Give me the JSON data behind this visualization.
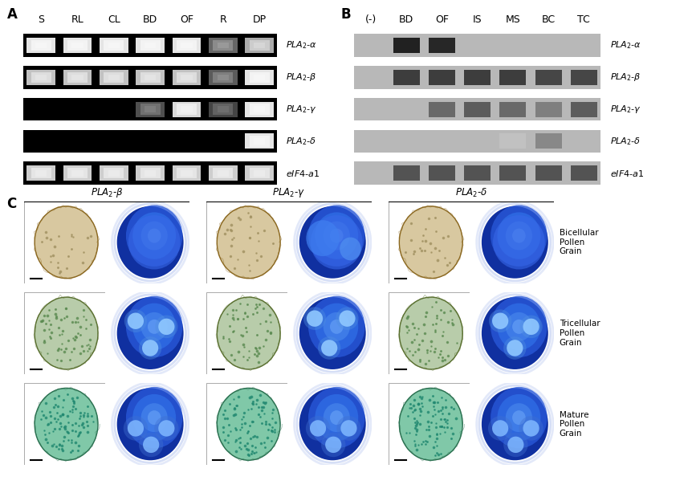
{
  "panel_A_label": "A",
  "panel_B_label": "B",
  "panel_C_label": "C",
  "panel_A_col_labels": [
    "S",
    "RL",
    "CL",
    "BD",
    "OF",
    "R",
    "DP"
  ],
  "panel_B_col_labels": [
    "(-)",
    "BD",
    "OF",
    "IS",
    "MS",
    "BC",
    "TC"
  ],
  "panel_A_row_labels": [
    "$PLA_2$-$\\alpha$",
    "$PLA_2$-$\\beta$",
    "$PLA_2$-$\\gamma$",
    "$PLA_2$-$\\delta$",
    "$eIF4$-$a1$"
  ],
  "panel_B_row_labels": [
    "$PLA_2$-$\\alpha$",
    "$PLA_2$-$\\beta$",
    "$PLA_2$-$\\gamma$",
    "$PLA_2$-$\\delta$",
    "$eIF4$-$a1$"
  ],
  "panel_C_col_titles": [
    "$PLA_2$-$\\beta$",
    "$PLA_2$-$\\gamma$",
    "$PLA_2$-$\\delta$"
  ],
  "panel_C_row_labels": [
    "Bicellular\nPollen\nGrain",
    "Tricellular\nPollen\nGrain",
    "Mature\nPollen\nGrain"
  ],
  "panel_A_bands": [
    [
      1.0,
      1.0,
      1.0,
      1.0,
      1.0,
      0.45,
      0.75
    ],
    [
      0.85,
      0.85,
      0.85,
      0.85,
      0.85,
      0.4,
      1.0
    ],
    [
      0,
      0,
      0,
      0.35,
      0.95,
      0.3,
      1.0
    ],
    [
      0,
      0,
      0,
      0,
      0,
      0,
      1.0
    ],
    [
      0.9,
      0.9,
      0.9,
      0.9,
      0.9,
      0.9,
      0.9
    ]
  ],
  "panel_B_bands": [
    [
      0,
      0.85,
      0.82,
      0,
      0,
      0,
      0
    ],
    [
      0,
      0.72,
      0.72,
      0.72,
      0.72,
      0.68,
      0.68
    ],
    [
      0,
      0,
      0.52,
      0.58,
      0.52,
      0.42,
      0.58
    ],
    [
      0,
      0,
      0,
      0,
      0.12,
      0.38,
      0
    ],
    [
      0,
      0.62,
      0.62,
      0.62,
      0.62,
      0.62,
      0.62
    ]
  ],
  "label_fontsize": 9,
  "panel_label_fontsize": 12
}
